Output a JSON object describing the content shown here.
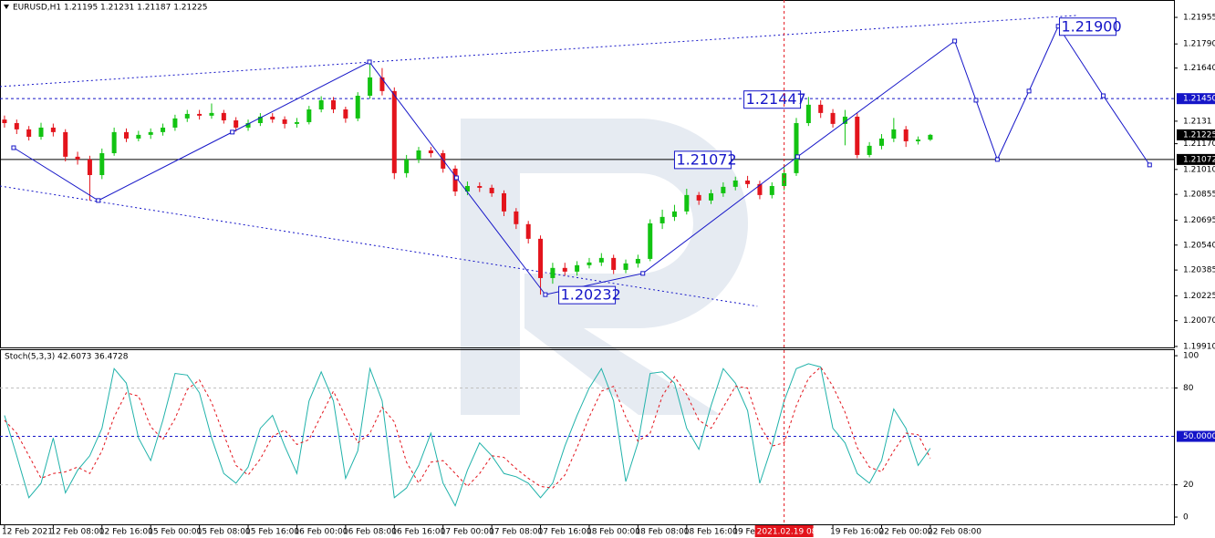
{
  "chart_data": [
    {
      "type": "candlestick",
      "title": "EURUSD,H1  1.21195 1.21231 1.21187 1.21225",
      "xlim": [
        -0.37,
        96
      ],
      "ylim": [
        1.19904,
        1.22063
      ],
      "yticks": [
        1.21955,
        {
          "value": 1.2179,
          "label": "1.21790"
        },
        {
          "value": 1.2164,
          "label": "1.21640"
        },
        1.2131,
        {
          "value": 1.2117,
          "label": "1.21170"
        },
        {
          "value": 1.2101,
          "label": "1.21010"
        },
        1.20855,
        1.20695,
        {
          "value": 1.2054,
          "label": "1.20540"
        },
        1.20385,
        1.20225,
        {
          "value": 1.2007,
          "label": "1.20070"
        },
        {
          "value": 1.1991,
          "label": "1.19910"
        }
      ],
      "up_color": "#12c312",
      "down_color": "#e3141c",
      "open": [
        1.2132,
        1.21298,
        1.21259,
        1.21213,
        1.2127,
        1.21242,
        1.21089,
        1.21072,
        1.20975,
        1.21111,
        1.21242,
        1.21202,
        1.21225,
        1.21242,
        1.2127,
        1.21327,
        1.21355,
        1.21344,
        1.21361,
        1.21315,
        1.2127,
        1.21298,
        1.21338,
        1.21321,
        1.21293,
        1.21304,
        1.21383,
        1.2144,
        1.21383,
        1.21327,
        1.21468,
        1.21582,
        1.21497,
        1.20987,
        1.21072,
        1.21128,
        1.21111,
        1.21015,
        1.20873,
        1.20907,
        1.20896,
        1.20862,
        1.20749,
        1.2067,
        1.20579,
        1.20335,
        1.20398,
        1.20375,
        1.20415,
        1.20432,
        1.2046,
        1.20386,
        1.20426,
        1.20454,
        1.20675,
        1.20715,
        1.20749,
        1.20851,
        1.20817,
        1.20862,
        1.20902,
        1.20941,
        1.20919,
        1.20851,
        1.20907,
        1.20987,
        1.21298,
        1.21412,
        1.21361,
        1.21293,
        1.21338,
        1.211,
        1.21157,
        1.21202,
        1.21259,
        1.21185,
        1.21195
      ],
      "high": [
        1.21345,
        1.2132,
        1.2128,
        1.213,
        1.21295,
        1.2126,
        1.2112,
        1.21095,
        1.2114,
        1.2127,
        1.21265,
        1.2125,
        1.21265,
        1.21295,
        1.2135,
        1.2138,
        1.2138,
        1.2142,
        1.2138,
        1.21335,
        1.2132,
        1.2136,
        1.2136,
        1.2134,
        1.2133,
        1.21405,
        1.21465,
        1.2146,
        1.214,
        1.2149,
        1.2168,
        1.2164,
        1.2152,
        1.211,
        1.2115,
        1.2115,
        1.2113,
        1.21035,
        1.20935,
        1.2093,
        1.20915,
        1.2088,
        1.2077,
        1.2069,
        1.206,
        1.2043,
        1.2043,
        1.2044,
        1.2046,
        1.2049,
        1.2048,
        1.2045,
        1.2048,
        1.207,
        1.2076,
        1.2079,
        1.2089,
        1.2087,
        1.20885,
        1.2093,
        1.20965,
        1.2097,
        1.2094,
        1.2093,
        1.2104,
        1.2133,
        1.2146,
        1.2144,
        1.21385,
        1.2138,
        1.2136,
        1.2118,
        1.2123,
        1.2133,
        1.2128,
        1.21215,
        1.21231
      ],
      "low": [
        1.2127,
        1.2123,
        1.2119,
        1.21195,
        1.21215,
        1.2106,
        1.2104,
        1.20817,
        1.2095,
        1.21095,
        1.2118,
        1.21185,
        1.212,
        1.2122,
        1.2125,
        1.21305,
        1.2132,
        1.21325,
        1.21295,
        1.21245,
        1.2125,
        1.2128,
        1.213,
        1.21265,
        1.2127,
        1.2129,
        1.21365,
        1.2136,
        1.213,
        1.2131,
        1.2145,
        1.2147,
        1.2095,
        1.2096,
        1.2105,
        1.21085,
        1.2099,
        1.20845,
        1.2085,
        1.2087,
        1.2084,
        1.2072,
        1.2064,
        1.2055,
        1.20232,
        1.203,
        1.2035,
        1.2035,
        1.20395,
        1.2041,
        1.2036,
        1.20365,
        1.204,
        1.2044,
        1.2064,
        1.2069,
        1.2073,
        1.2079,
        1.20795,
        1.2084,
        1.2088,
        1.20895,
        1.20825,
        1.2083,
        1.2088,
        1.2097,
        1.2128,
        1.2133,
        1.2127,
        1.2116,
        1.2108,
        1.21085,
        1.21135,
        1.2118,
        1.2115,
        1.21165,
        1.21187
      ],
      "close": [
        1.21298,
        1.21259,
        1.21213,
        1.2127,
        1.21242,
        1.21089,
        1.21072,
        1.20975,
        1.21111,
        1.21242,
        1.21202,
        1.21225,
        1.21242,
        1.2127,
        1.21327,
        1.21355,
        1.21344,
        1.21361,
        1.21315,
        1.2127,
        1.21298,
        1.21338,
        1.21321,
        1.21293,
        1.21304,
        1.21383,
        1.2144,
        1.21383,
        1.21327,
        1.21468,
        1.21582,
        1.21497,
        1.20987,
        1.21072,
        1.21128,
        1.21111,
        1.21015,
        1.20873,
        1.20907,
        1.20896,
        1.20862,
        1.20749,
        1.2067,
        1.20579,
        1.20335,
        1.20398,
        1.20375,
        1.20415,
        1.20432,
        1.2046,
        1.20386,
        1.20426,
        1.20454,
        1.20675,
        1.20715,
        1.20749,
        1.20851,
        1.20817,
        1.20862,
        1.20902,
        1.20941,
        1.20919,
        1.20851,
        1.20907,
        1.20987,
        1.21298,
        1.21412,
        1.21361,
        1.21293,
        1.21338,
        1.211,
        1.21157,
        1.21202,
        1.21259,
        1.21185,
        1.21196,
        1.21225
      ],
      "channel": {
        "color": "#1515c8",
        "lines": [
          {
            "x": [
              -0.37,
              88
            ],
            "y": [
              1.21525,
              1.21967
            ]
          },
          {
            "x": [
              -0.37,
              61.8
            ],
            "y": [
              1.20907,
              1.2016
            ]
          }
        ]
      },
      "forecast": {
        "color": "#1515c8",
        "x": [
          0.75,
          7.7,
          18.7,
          29.96,
          37.1,
          44.4,
          52.4,
          65.1,
          78,
          79.75,
          81.5,
          84.1,
          86.5,
          90.2,
          94
        ],
        "y": [
          1.21145,
          1.20817,
          1.21242,
          1.21678,
          1.20958,
          1.20232,
          1.20364,
          1.21089,
          1.21808,
          1.2144,
          1.21072,
          1.21497,
          1.219,
          1.21468,
          1.21038
        ]
      },
      "annotations": [
        {
          "x": 60.7,
          "value": 1.21447
        },
        {
          "x": 55,
          "value": 1.21072
        },
        {
          "x": 45.5,
          "value": 1.20232
        },
        {
          "x": 86.6,
          "value": 1.219,
          "label": "1.21900"
        }
      ],
      "levels": [
        {
          "value": 1.2145,
          "color": "#1515c8",
          "style": "dashed"
        },
        {
          "value": 1.21072,
          "color": "#000000",
          "style": "solid"
        }
      ],
      "axis_markers": [
        {
          "value": 1.2145,
          "label": "1.21450",
          "color": "#1515c8"
        },
        {
          "value": 1.21225,
          "color": "#000000"
        },
        {
          "value": 1.21072,
          "color": "#000000"
        }
      ]
    },
    {
      "type": "stochastic",
      "title": "Stoch(5,3,3) 42.6073 36.4728",
      "xlim": [
        -0.37,
        96
      ],
      "ylim": [
        -4.5,
        104
      ],
      "yticks": [
        100,
        80,
        20,
        0
      ],
      "levels": [
        {
          "value": 80,
          "color": "#c0c0c0",
          "style": "dashed"
        },
        {
          "value": 50,
          "color": "#1515c8",
          "style": "dashed"
        },
        {
          "value": 20,
          "color": "#c0c0c0",
          "style": "dashed"
        }
      ],
      "axis_markers": [
        {
          "value": 50,
          "label": "50.0000",
          "color": "#1515c8"
        }
      ],
      "xticks": [
        {
          "value": 0,
          "label": "12 Feb 2021"
        },
        {
          "value": 4,
          "label": "12 Feb 08:00"
        },
        {
          "value": 8,
          "label": "12 Feb 16:00"
        },
        {
          "value": 12,
          "label": "15 Feb 00:00"
        },
        {
          "value": 16,
          "label": "15 Feb 08:00"
        },
        {
          "value": 20,
          "label": "15 Feb 16:00"
        },
        {
          "value": 24,
          "label": "16 Feb 00:00"
        },
        {
          "value": 28,
          "label": "16 Feb 08:00"
        },
        {
          "value": 32,
          "label": "16 Feb 16:00"
        },
        {
          "value": 36,
          "label": "17 Feb 00:00"
        },
        {
          "value": 40,
          "label": "17 Feb 08:00"
        },
        {
          "value": 44,
          "label": "17 Feb 16:00"
        },
        {
          "value": 48,
          "label": "18 Feb 00:00"
        },
        {
          "value": 52,
          "label": "18 Feb 08:00"
        },
        {
          "value": 56,
          "label": "18 Feb 16:00"
        },
        {
          "value": 60,
          "label": "19 Feb 00:00"
        },
        {
          "value": 68,
          "label": "19 Feb 16:00"
        },
        {
          "value": 72,
          "label": "22 Feb 00:00"
        },
        {
          "value": 76,
          "label": "22 Feb 08:00"
        }
      ],
      "cursor": {
        "value": 64,
        "label": "2021.02.19 08:00",
        "color": "#e3141c"
      },
      "series": [
        {
          "color": "#20b2aa",
          "style": "solid",
          "values": [
            63,
            38,
            12,
            21,
            49,
            15,
            29,
            38,
            55,
            92,
            83,
            49,
            35,
            60,
            89,
            88,
            77,
            49,
            27,
            21,
            31,
            55,
            63,
            44,
            27,
            72,
            90,
            72,
            24,
            41,
            92,
            72,
            12,
            18,
            32,
            52,
            21,
            7,
            29,
            46,
            38,
            27,
            25,
            21,
            12,
            21,
            44,
            63,
            80,
            92,
            72,
            22,
            46,
            89,
            90,
            83,
            55,
            42,
            69,
            92,
            83,
            66,
            21,
            44,
            72,
            92,
            95,
            93,
            55,
            46,
            27,
            21,
            35,
            67,
            55,
            32,
            42.6073
          ]
        },
        {
          "color": "#e3141c",
          "style": "dashed",
          "values": [
            60,
            52,
            38,
            24,
            27,
            28,
            31,
            27,
            41,
            62,
            77,
            75,
            56,
            48,
            61,
            79,
            85,
            71,
            51,
            32,
            26,
            36,
            50,
            54,
            45,
            48,
            63,
            78,
            62,
            46,
            52,
            68,
            59,
            34,
            21,
            34,
            35,
            27,
            19,
            27,
            38,
            37,
            30,
            24,
            19,
            18,
            26,
            43,
            62,
            78,
            81,
            62,
            47,
            52,
            75,
            87,
            76,
            60,
            55,
            68,
            81,
            80,
            57,
            44,
            46,
            69,
            86,
            93,
            81,
            65,
            43,
            31,
            28,
            41,
            52,
            51,
            36.4728
          ]
        }
      ]
    }
  ]
}
